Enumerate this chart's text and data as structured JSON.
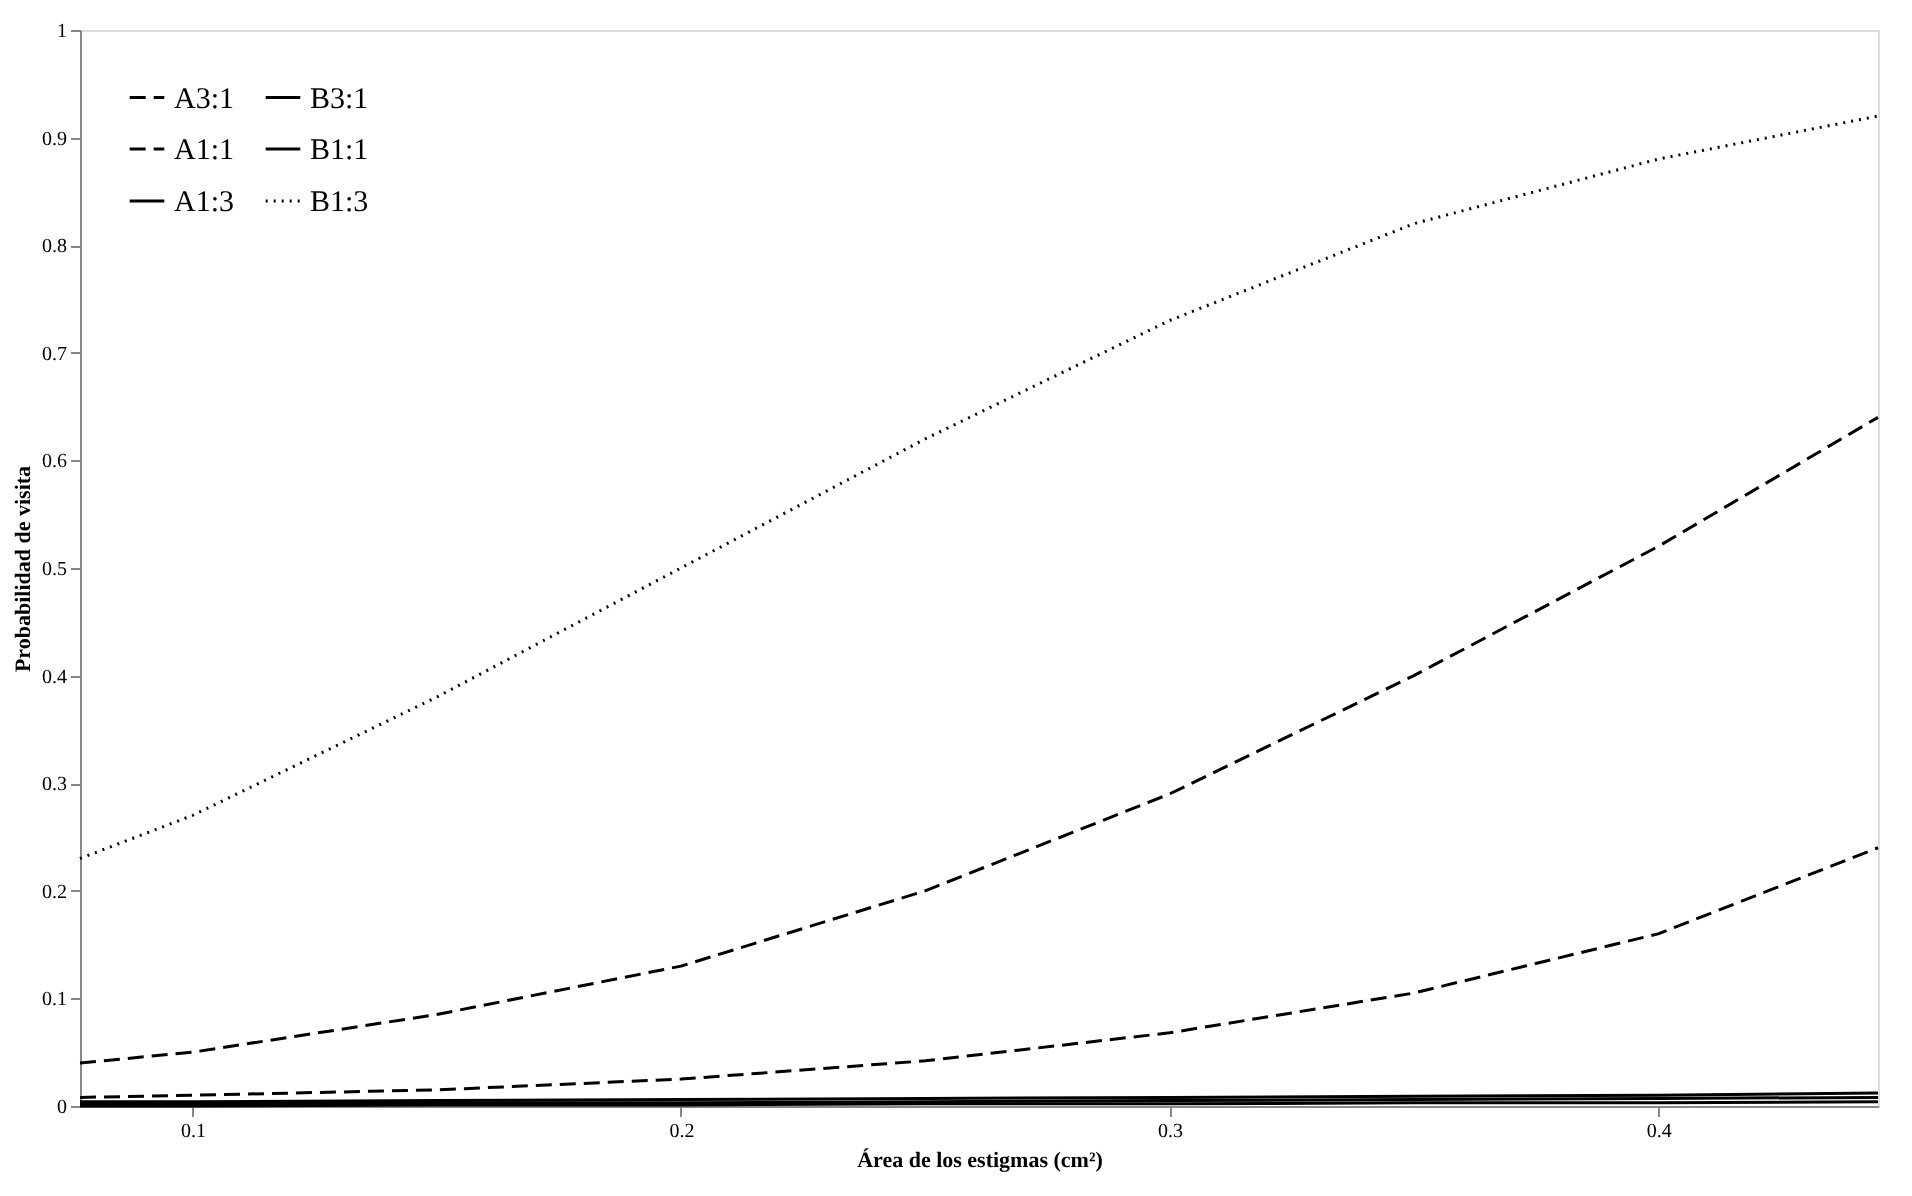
{
  "chart_data": {
    "type": "line",
    "xlabel": "Área de los estigmas (cm²)",
    "ylabel": "Probabilidad de visita",
    "xlim": [
      0.077,
      0.445
    ],
    "xticks": [
      0.1,
      0.2,
      0.3,
      0.4
    ],
    "ylim": [
      0,
      1
    ],
    "yticks": [
      0,
      0.1,
      0.2,
      0.3,
      0.4,
      0.5,
      0.6,
      0.7,
      0.8,
      0.9,
      1
    ],
    "grid": false,
    "legend": "top left",
    "marker": "none",
    "x": [
      0.077,
      0.1,
      0.15,
      0.2,
      0.25,
      0.3,
      0.35,
      0.4,
      0.445
    ],
    "series": [
      {
        "name": "A3:1",
        "color": "#000000",
        "line_style": "dashed",
        "values": [
          0.008,
          0.01,
          0.015,
          0.025,
          0.042,
          0.068,
          0.105,
          0.16,
          0.24
        ]
      },
      {
        "name": "A1:1",
        "color": "#000000",
        "line_style": "dashed",
        "values": [
          0.04,
          0.05,
          0.085,
          0.13,
          0.2,
          0.29,
          0.4,
          0.52,
          0.64
        ]
      },
      {
        "name": "A1:3",
        "color": "#000000",
        "line_style": "solid",
        "values": [
          0.004,
          0.004,
          0.005,
          0.006,
          0.007,
          0.008,
          0.009,
          0.01,
          0.012
        ]
      },
      {
        "name": "B3:1",
        "color": "#000000",
        "line_style": "solid",
        "values": [
          0.0,
          0.0,
          0.001,
          0.001,
          0.002,
          0.002,
          0.003,
          0.003,
          0.004
        ]
      },
      {
        "name": "B1:1",
        "color": "#000000",
        "line_style": "solid",
        "values": [
          0.002,
          0.002,
          0.003,
          0.003,
          0.004,
          0.005,
          0.006,
          0.007,
          0.008
        ]
      },
      {
        "name": "B1:3",
        "color": "#000000",
        "line_style": "dotted",
        "values": [
          0.23,
          0.27,
          0.38,
          0.5,
          0.62,
          0.73,
          0.82,
          0.88,
          0.92
        ]
      }
    ]
  }
}
